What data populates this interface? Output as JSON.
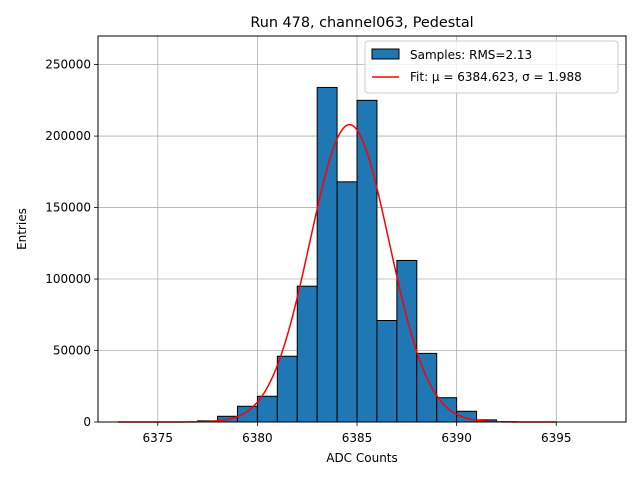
{
  "chart_data": {
    "type": "bar",
    "title": "Run 478, channel063, Pedestal",
    "xlabel": "ADC Counts",
    "ylabel": "Entries",
    "xlim": [
      6372.0,
      6398.5
    ],
    "ylim": [
      0,
      270000
    ],
    "xticks": [
      6375,
      6380,
      6385,
      6390,
      6395
    ],
    "yticks": [
      0,
      50000,
      100000,
      150000,
      200000,
      250000
    ],
    "grid": true,
    "legend_position": "top-right",
    "bar_color": "#1f77b4",
    "bar_edge_color": "#000000",
    "fit_color": "#ff0000",
    "histogram": {
      "name": "Samples: RMS=2.13",
      "bin_width": 1,
      "bins": [
        {
          "left": 6377,
          "value": 800
        },
        {
          "left": 6378,
          "value": 4000
        },
        {
          "left": 6379,
          "value": 11000
        },
        {
          "left": 6380,
          "value": 18000
        },
        {
          "left": 6381,
          "value": 46000
        },
        {
          "left": 6382,
          "value": 95000
        },
        {
          "left": 6383,
          "value": 234000
        },
        {
          "left": 6384,
          "value": 168000
        },
        {
          "left": 6385,
          "value": 225000
        },
        {
          "left": 6386,
          "value": 71000
        },
        {
          "left": 6387,
          "value": 113000
        },
        {
          "left": 6388,
          "value": 48000
        },
        {
          "left": 6389,
          "value": 17000
        },
        {
          "left": 6390,
          "value": 7500
        },
        {
          "left": 6391,
          "value": 1500
        },
        {
          "left": 6392,
          "value": 200
        }
      ]
    },
    "fit": {
      "name": "Fit: μ = 6384.623, σ = 1.988",
      "type": "gaussian",
      "amplitude": 208000,
      "mu": 6384.623,
      "sigma": 1.988,
      "x_range": [
        6373,
        6395
      ]
    }
  }
}
